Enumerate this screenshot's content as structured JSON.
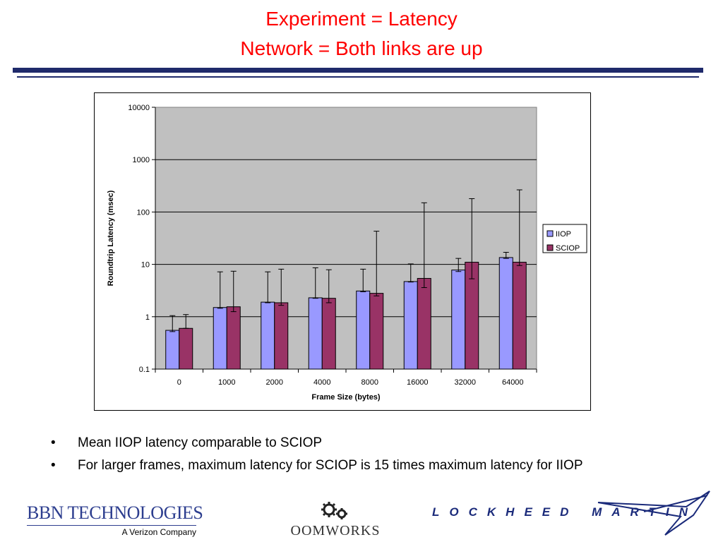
{
  "slide": {
    "title_line1": "Experiment = Latency",
    "title_line2": "Network = Both links are up",
    "bullet_glyph": "•",
    "bullets": [
      "Mean IIOP latency comparable to SCIOP",
      "For larger frames, maximum latency for SCIOP is 15 times maximum latency for IIOP"
    ]
  },
  "logos": {
    "bbn_name": "BBN TECHNOLOGIES",
    "bbn_tagline": "A Verizon Company",
    "oomworks_name": "OOMWORKS",
    "lockheed_name": "LOCKHEED MARTIN"
  },
  "chart_data": {
    "type": "bar",
    "scale": "log",
    "xlabel": "Frame Size (bytes)",
    "ylabel": "Roundtrip Latency (msec)",
    "ylim": [
      0.1,
      10000
    ],
    "yticks": [
      0.1,
      1,
      10,
      100,
      1000,
      10000
    ],
    "ytick_labels": [
      "0.1",
      "1",
      "10",
      "100",
      "1000",
      "10000"
    ],
    "grid": true,
    "legend": "right",
    "categories": [
      "0",
      "1000",
      "2000",
      "4000",
      "8000",
      "16000",
      "32000",
      "64000"
    ],
    "series": [
      {
        "name": "IIOP",
        "color": "#9999ff",
        "values": [
          0.55,
          1.5,
          1.9,
          2.3,
          3.1,
          4.7,
          7.8,
          13.5
        ],
        "err_low": [
          0.52,
          1.45,
          1.85,
          2.25,
          3.0,
          4.6,
          7.3,
          13.0
        ],
        "err_high": [
          1.05,
          7.2,
          7.2,
          8.6,
          8.1,
          10.2,
          13.0,
          17.0
        ]
      },
      {
        "name": "SCIOP",
        "color": "#993366",
        "values": [
          0.6,
          1.55,
          1.85,
          2.25,
          2.8,
          5.4,
          11.0,
          11.0
        ],
        "err_low": [
          0.6,
          1.25,
          1.65,
          1.85,
          2.5,
          3.6,
          5.3,
          9.5
        ],
        "err_high": [
          1.1,
          7.4,
          8.1,
          7.9,
          43,
          150,
          180,
          265
        ]
      }
    ]
  }
}
